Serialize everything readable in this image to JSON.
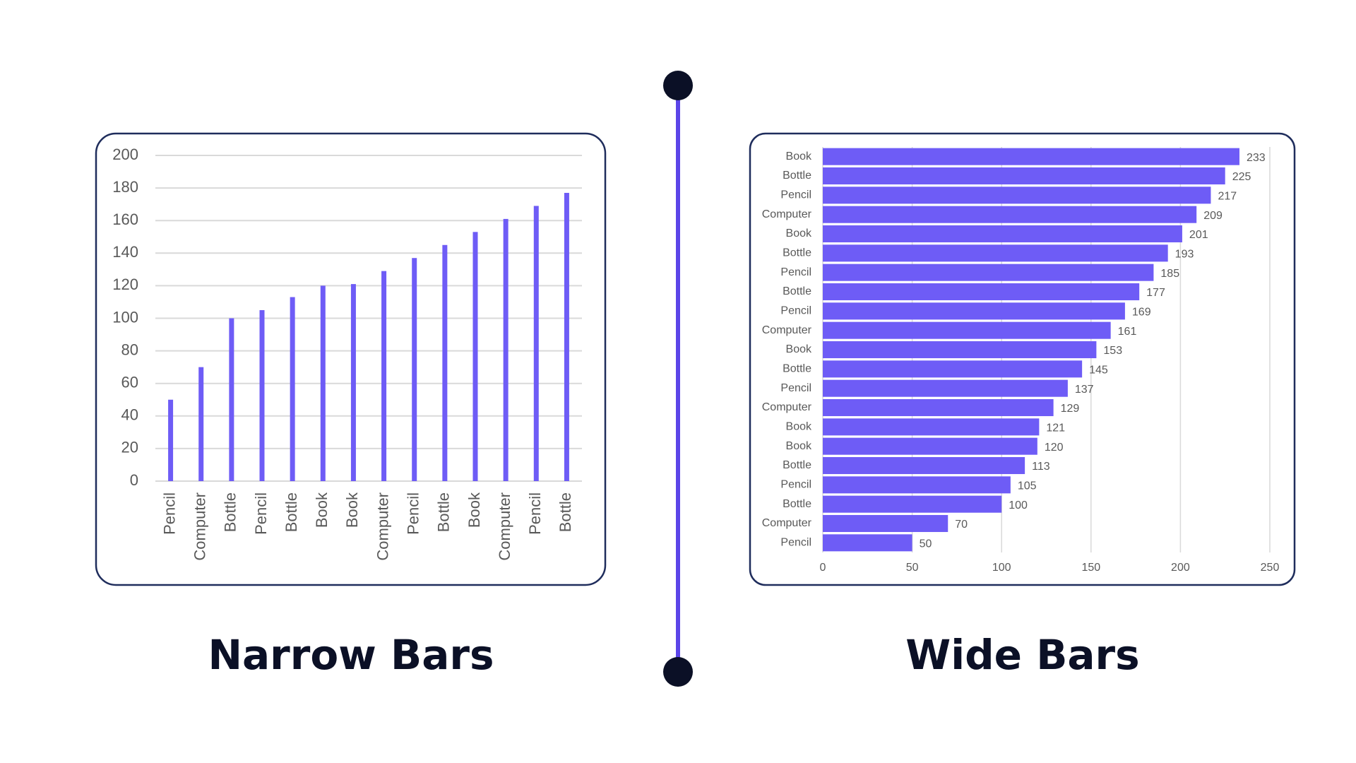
{
  "chart_data": [
    {
      "type": "bar",
      "title": "Narrow Bars",
      "categories": [
        "Pencil",
        "Computer",
        "Bottle",
        "Pencil",
        "Bottle",
        "Book",
        "Book",
        "Computer",
        "Pencil",
        "Bottle",
        "Book",
        "Computer",
        "Pencil",
        "Bottle"
      ],
      "values": [
        50,
        70,
        100,
        105,
        113,
        120,
        121,
        129,
        137,
        145,
        153,
        161,
        169,
        177
      ],
      "color": "#6e5cf6",
      "ylim": [
        0,
        200
      ],
      "yticks": [
        0,
        20,
        40,
        60,
        80,
        100,
        120,
        140,
        160,
        180,
        200
      ],
      "grid": true
    },
    {
      "type": "barh",
      "title": "Wide Bars",
      "categories": [
        "Book",
        "Bottle",
        "Pencil",
        "Computer",
        "Book",
        "Bottle",
        "Pencil",
        "Bottle",
        "Pencil",
        "Computer",
        "Book",
        "Bottle",
        "Pencil",
        "Computer",
        "Book",
        "Book",
        "Bottle",
        "Pencil",
        "Bottle",
        "Computer",
        "Pencil"
      ],
      "values": [
        233,
        225,
        217,
        209,
        201,
        193,
        185,
        177,
        169,
        161,
        153,
        145,
        137,
        129,
        121,
        120,
        113,
        105,
        100,
        70,
        50
      ],
      "color": "#6e5cf6",
      "xlim": [
        0,
        250
      ],
      "xticks": [
        0,
        50,
        100,
        150,
        200,
        250
      ],
      "grid": true
    }
  ]
}
